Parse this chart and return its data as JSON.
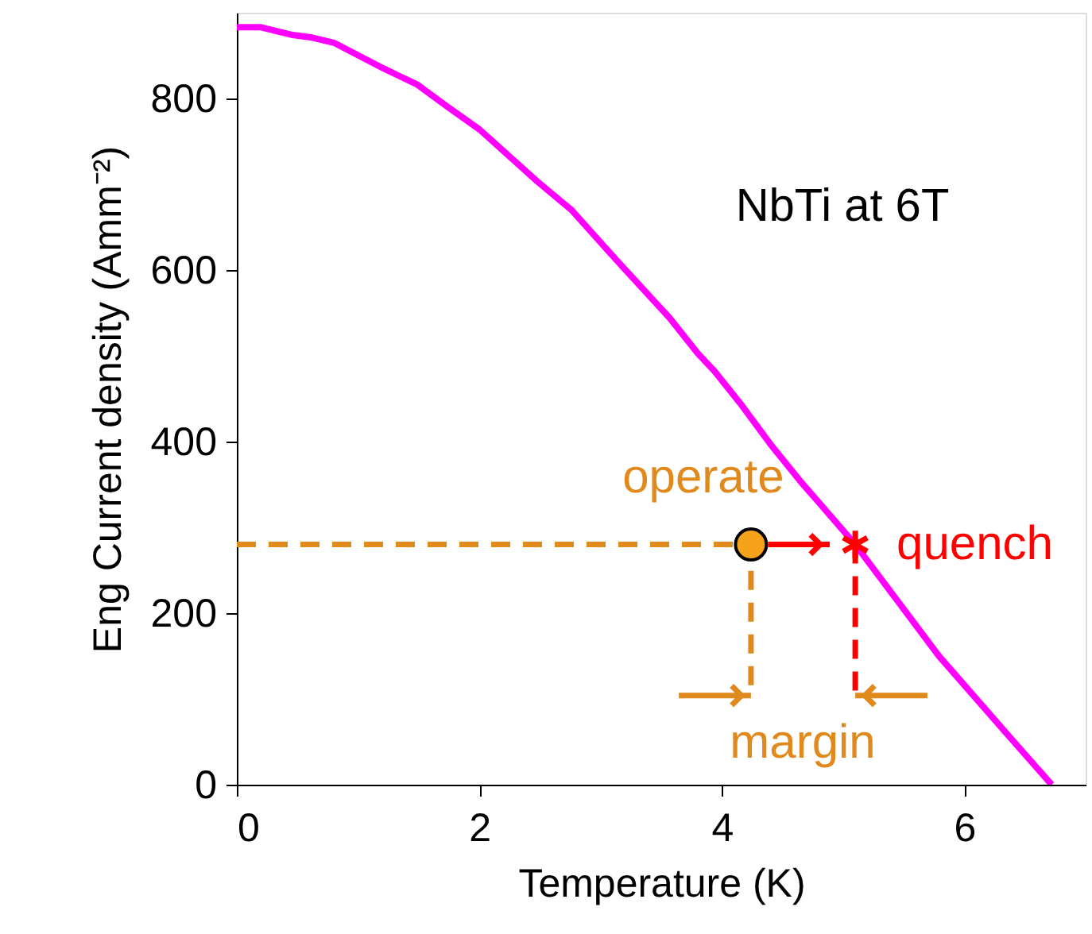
{
  "chart_data": {
    "type": "line",
    "xlabel": "Temperature (K)",
    "ylabel": "Eng Current density (Amm⁻²)",
    "xlim": [
      0,
      7
    ],
    "ylim": [
      0,
      900
    ],
    "xticks": [
      0,
      2,
      4,
      6
    ],
    "yticks": [
      0,
      200,
      400,
      600,
      800
    ],
    "grid": false,
    "series": [
      {
        "color": "#ff00ff",
        "marker": "none",
        "line_style": "solid",
        "x": [
          0,
          0.2,
          0.46,
          0.62,
          0.8,
          1.21,
          1.49,
          1.74,
          2.0,
          2.48,
          2.76,
          3.16,
          3.57,
          3.8,
          3.94,
          4.16,
          4.4,
          4.64,
          5.1,
          5.79,
          6.34,
          6.72
        ],
        "values": [
          883,
          883,
          874,
          871,
          865,
          835,
          816,
          790,
          764,
          703,
          670,
          607,
          544,
          503,
          482,
          443,
          397,
          355,
          280,
          150,
          61,
          0
        ]
      },
      {
        "type": "line",
        "color": "#e08a1e",
        "marker": "none",
        "line_style": "dashed",
        "x": [
          0,
          4.24,
          4.24
        ],
        "values": [
          280,
          280,
          104
        ]
      },
      {
        "type": "line",
        "color": "#ff0000",
        "marker": "none",
        "line_style": "dashed",
        "x": [
          5.1,
          5.1
        ],
        "values": [
          280,
          104
        ]
      },
      {
        "type": "scatter",
        "color": "#f7a21b",
        "marker": "circle",
        "x": [
          4.24
        ],
        "values": [
          280
        ]
      },
      {
        "type": "scatter",
        "color": "#ff0000",
        "marker": "cross",
        "x": [
          5.1
        ],
        "values": [
          280
        ]
      }
    ],
    "annotations": [
      "NbTi at 6T",
      {
        "text": "operate",
        "x": 4.24,
        "y": 280
      },
      {
        "text": "quench",
        "x": 5.1,
        "y": 280
      },
      "margin"
    ]
  }
}
